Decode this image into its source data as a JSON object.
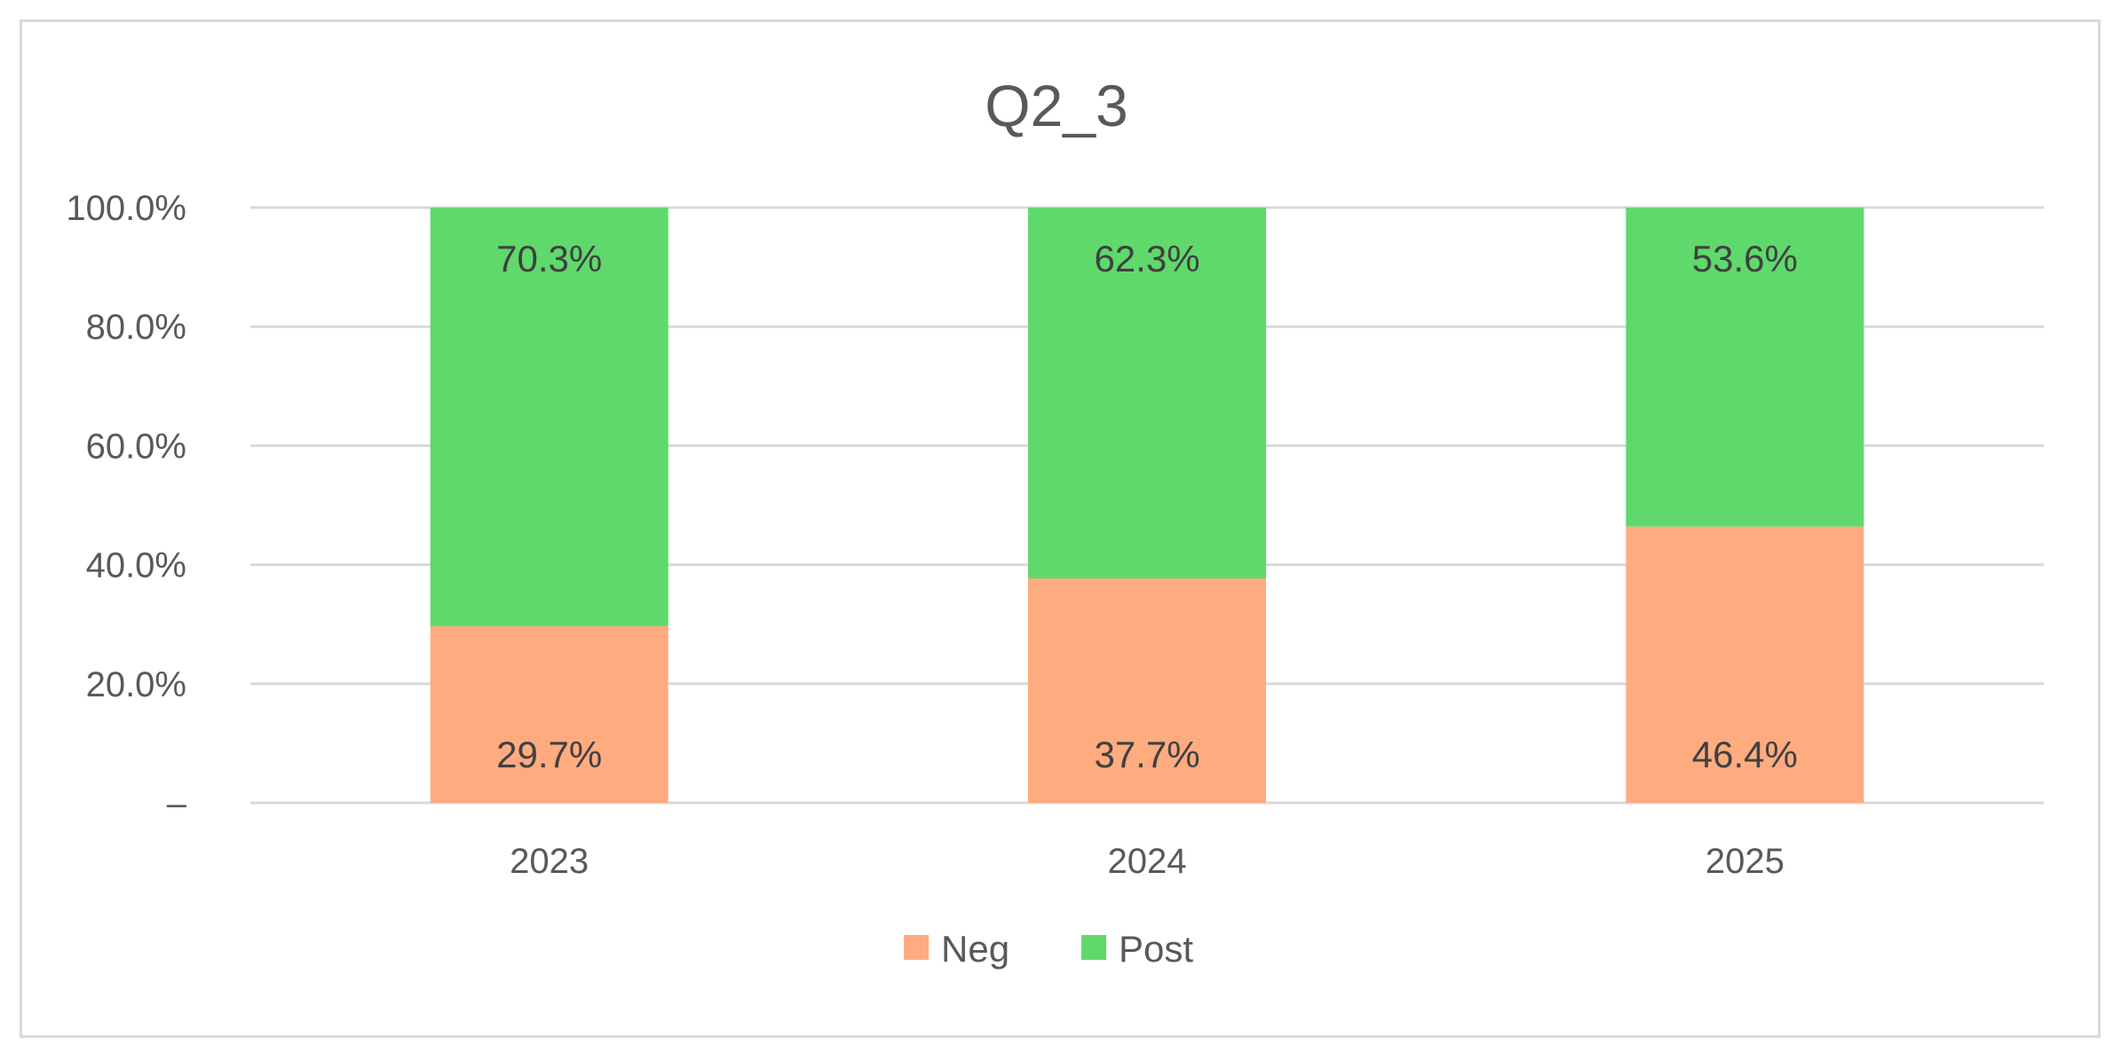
{
  "chart_data": {
    "type": "bar",
    "stacked": true,
    "title": "Q2_3",
    "categories": [
      "2023",
      "2024",
      "2025"
    ],
    "series": [
      {
        "name": "Neg",
        "values": [
          29.7,
          37.7,
          46.4
        ],
        "labels": [
          "29.7%",
          "37.7%",
          "46.4%"
        ],
        "color": "#ffab80"
      },
      {
        "name": "Post",
        "values": [
          70.3,
          62.3,
          53.6
        ],
        "labels": [
          "70.3%",
          "62.3%",
          "53.6%"
        ],
        "color": "#5fd96c"
      }
    ],
    "y_ticks": [
      {
        "value": 0,
        "label": "–"
      },
      {
        "value": 20,
        "label": "20.0%"
      },
      {
        "value": 40,
        "label": "40.0%"
      },
      {
        "value": 60,
        "label": "60.0%"
      },
      {
        "value": 80,
        "label": "80.0%"
      },
      {
        "value": 100,
        "label": "100.0%"
      }
    ],
    "ylim": [
      0,
      100
    ],
    "grid": true,
    "legend_position": "bottom"
  }
}
